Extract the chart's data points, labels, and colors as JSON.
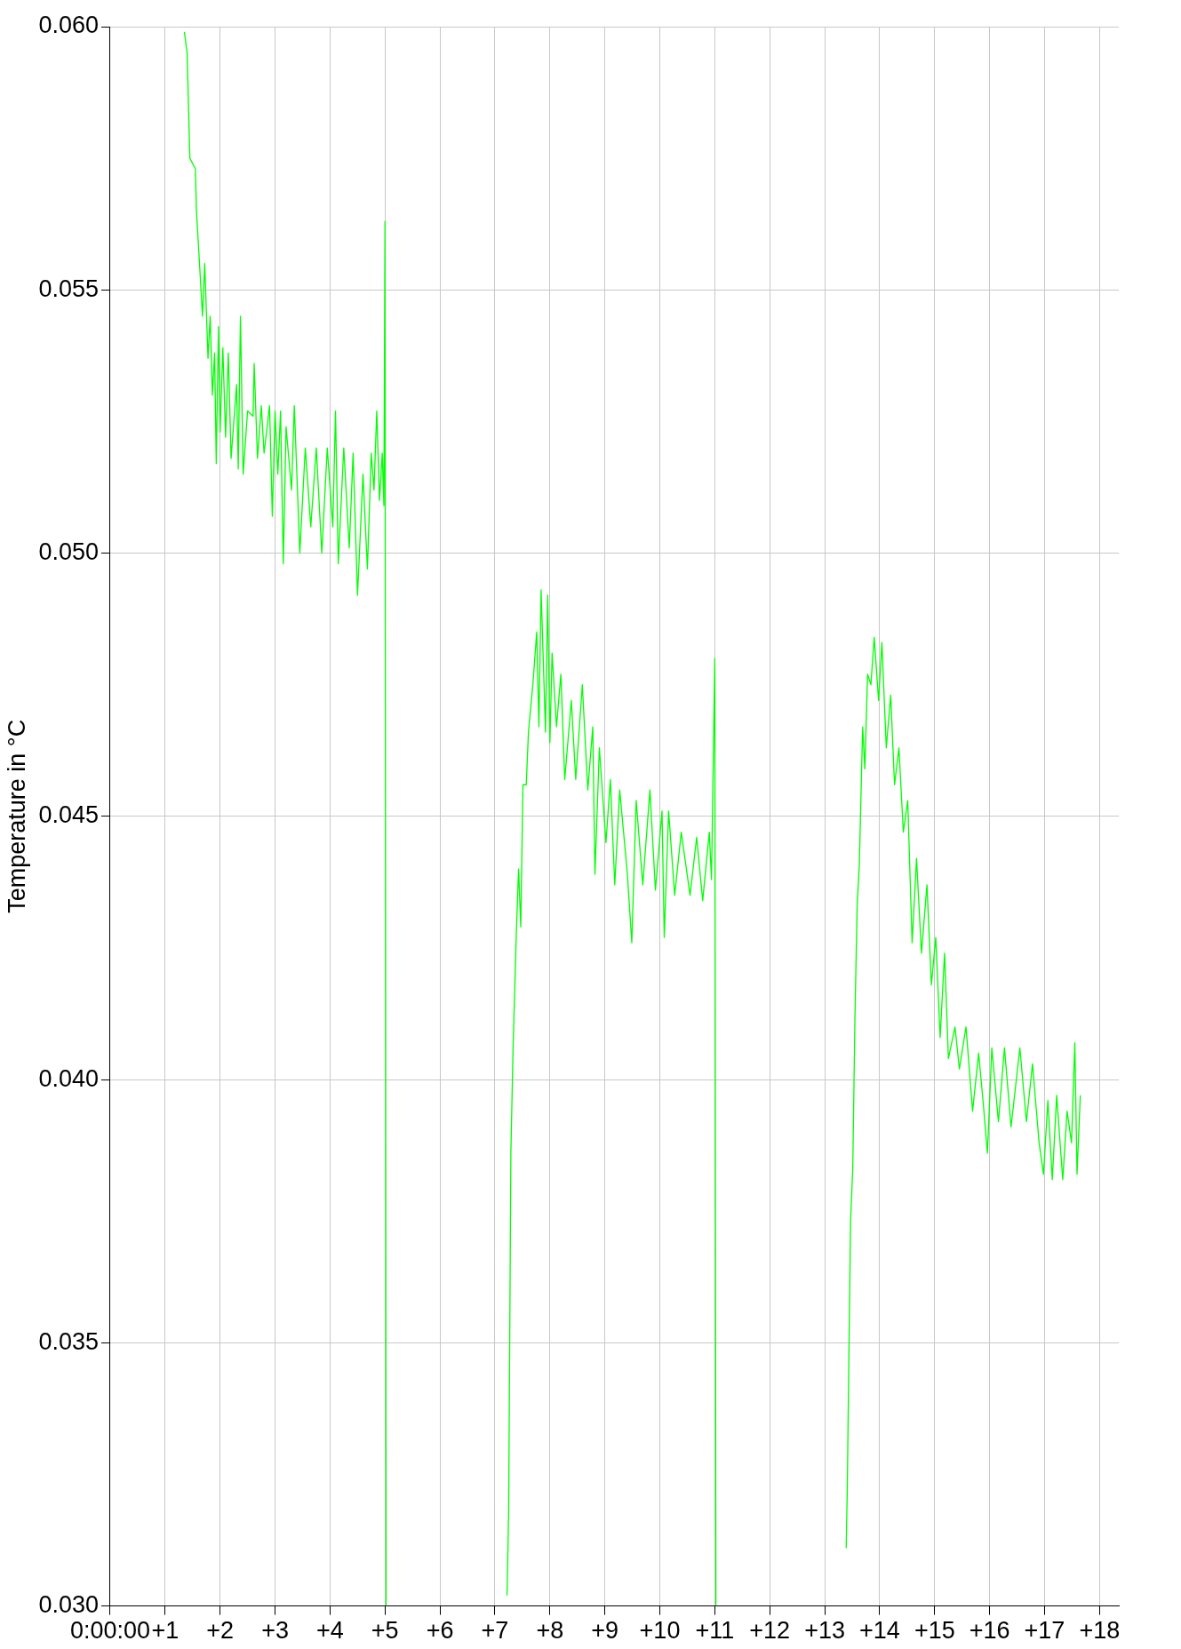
{
  "chart_data": {
    "type": "line",
    "ylabel": "Temperature in °C",
    "x": [
      1.35,
      1.4,
      1.45,
      1.55,
      1.57,
      1.62,
      1.68,
      1.72,
      1.78,
      1.82,
      1.86,
      1.9,
      1.93,
      1.97,
      2.0,
      2.05,
      2.1,
      2.15,
      2.2,
      2.3,
      2.33,
      2.37,
      2.42,
      2.5,
      2.6,
      2.62,
      2.68,
      2.75,
      2.8,
      2.9,
      2.95,
      3.0,
      3.05,
      3.1,
      3.15,
      3.2,
      3.3,
      3.35,
      3.45,
      3.55,
      3.65,
      3.75,
      3.85,
      3.95,
      4.05,
      4.1,
      4.15,
      4.25,
      4.35,
      4.42,
      4.5,
      4.6,
      4.68,
      4.75,
      4.8,
      4.85,
      4.9,
      4.95,
      4.98,
      5.0,
      5.02,
      6.0,
      7.22,
      7.25,
      7.29,
      7.33,
      7.39,
      7.43,
      7.47,
      7.51,
      7.57,
      7.61,
      7.69,
      7.76,
      7.8,
      7.84,
      7.92,
      7.96,
      8.0,
      8.04,
      8.12,
      8.2,
      8.27,
      8.39,
      8.47,
      8.59,
      8.69,
      8.78,
      8.82,
      8.9,
      9.02,
      9.1,
      9.18,
      9.27,
      9.41,
      9.49,
      9.57,
      9.69,
      9.82,
      9.92,
      10.04,
      10.08,
      10.16,
      10.27,
      10.39,
      10.55,
      10.67,
      10.78,
      10.9,
      10.94,
      11.0,
      11.02,
      12.0,
      13.39,
      13.41,
      13.47,
      13.51,
      13.55,
      13.59,
      13.63,
      13.69,
      13.73,
      13.78,
      13.84,
      13.9,
      13.98,
      14.04,
      14.12,
      14.2,
      14.27,
      14.35,
      14.43,
      14.51,
      14.59,
      14.67,
      14.76,
      14.86,
      14.94,
      15.02,
      15.1,
      15.18,
      15.25,
      15.37,
      15.45,
      15.57,
      15.69,
      15.8,
      15.88,
      15.96,
      16.04,
      16.16,
      16.27,
      16.39,
      16.55,
      16.67,
      16.78,
      16.9,
      16.98,
      17.06,
      17.14,
      17.22,
      17.33,
      17.41,
      17.49,
      17.55,
      17.59,
      17.65
    ],
    "series": [
      {
        "color": "#00ff00",
        "values": [
          0.0599,
          0.0595,
          0.0575,
          0.0573,
          0.0565,
          0.0556,
          0.0545,
          0.0555,
          0.0537,
          0.0545,
          0.053,
          0.0538,
          0.0517,
          0.0543,
          0.0523,
          0.0539,
          0.0522,
          0.0538,
          0.0518,
          0.0532,
          0.0516,
          0.0545,
          0.0515,
          0.0527,
          0.0526,
          0.0536,
          0.0518,
          0.0528,
          0.0519,
          0.0528,
          0.0507,
          0.0527,
          0.0515,
          0.0527,
          0.0498,
          0.0524,
          0.0512,
          0.0528,
          0.05,
          0.052,
          0.0505,
          0.052,
          0.05,
          0.052,
          0.0505,
          0.0527,
          0.0498,
          0.052,
          0.0501,
          0.0519,
          0.0492,
          0.0515,
          0.0497,
          0.0519,
          0.0512,
          0.0527,
          0.051,
          0.0519,
          0.0509,
          0.0563,
          0.03,
          null,
          0.0302,
          0.0318,
          0.0386,
          0.0406,
          0.0428,
          0.044,
          0.0429,
          0.0456,
          0.0456,
          0.0466,
          0.0475,
          0.0485,
          0.0467,
          0.0493,
          0.0466,
          0.0492,
          0.0464,
          0.0481,
          0.0467,
          0.0477,
          0.0457,
          0.0472,
          0.0457,
          0.0475,
          0.0455,
          0.0467,
          0.0439,
          0.0463,
          0.0445,
          0.0457,
          0.0437,
          0.0455,
          0.0439,
          0.0426,
          0.0453,
          0.0437,
          0.0455,
          0.0436,
          0.0451,
          0.0427,
          0.0451,
          0.0435,
          0.0447,
          0.0435,
          0.0446,
          0.0434,
          0.0447,
          0.0438,
          0.048,
          0.03,
          null,
          0.0311,
          0.0322,
          0.0373,
          0.0383,
          0.0412,
          0.0433,
          0.0441,
          0.0467,
          0.0459,
          0.0477,
          0.0475,
          0.0484,
          0.0472,
          0.0483,
          0.0463,
          0.0473,
          0.0456,
          0.0463,
          0.0447,
          0.0453,
          0.0426,
          0.0442,
          0.0424,
          0.0437,
          0.0418,
          0.0427,
          0.0408,
          0.0424,
          0.0404,
          0.041,
          0.0402,
          0.041,
          0.0394,
          0.0405,
          0.0396,
          0.0386,
          0.0406,
          0.0392,
          0.0406,
          0.0391,
          0.0406,
          0.0392,
          0.0403,
          0.0388,
          0.0382,
          0.0396,
          0.0381,
          0.0397,
          0.0381,
          0.0394,
          0.0388,
          0.0407,
          0.0382,
          0.0397
        ]
      }
    ],
    "xlim": [
      0,
      18.35
    ],
    "xticks": [
      {
        "value": 0,
        "label": "0:00:00"
      },
      {
        "value": 1,
        "label": "+1"
      },
      {
        "value": 2,
        "label": "+2"
      },
      {
        "value": 3,
        "label": "+3"
      },
      {
        "value": 4,
        "label": "+4"
      },
      {
        "value": 5,
        "label": "+5"
      },
      {
        "value": 6,
        "label": "+6"
      },
      {
        "value": 7,
        "label": "+7"
      },
      {
        "value": 8,
        "label": "+8"
      },
      {
        "value": 9,
        "label": "+9"
      },
      {
        "value": 10,
        "label": "+10"
      },
      {
        "value": 11,
        "label": "+11"
      },
      {
        "value": 12,
        "label": "+12"
      },
      {
        "value": 13,
        "label": "+13"
      },
      {
        "value": 14,
        "label": "+14"
      },
      {
        "value": 15,
        "label": "+15"
      },
      {
        "value": 16,
        "label": "+16"
      },
      {
        "value": 17,
        "label": "+17"
      },
      {
        "value": 18,
        "label": "+18"
      }
    ],
    "ylim": [
      0.03,
      0.06
    ],
    "yticks": [
      {
        "value": 0.03,
        "label": "0.030"
      },
      {
        "value": 0.035,
        "label": "0.035"
      },
      {
        "value": 0.04,
        "label": "0.040"
      },
      {
        "value": 0.045,
        "label": "0.045"
      },
      {
        "value": 0.05,
        "label": "0.050"
      },
      {
        "value": 0.055,
        "label": "0.055"
      },
      {
        "value": 0.06,
        "label": "0.060"
      }
    ],
    "grid": true,
    "legend": false,
    "marker": "none",
    "line_style": "solid"
  }
}
